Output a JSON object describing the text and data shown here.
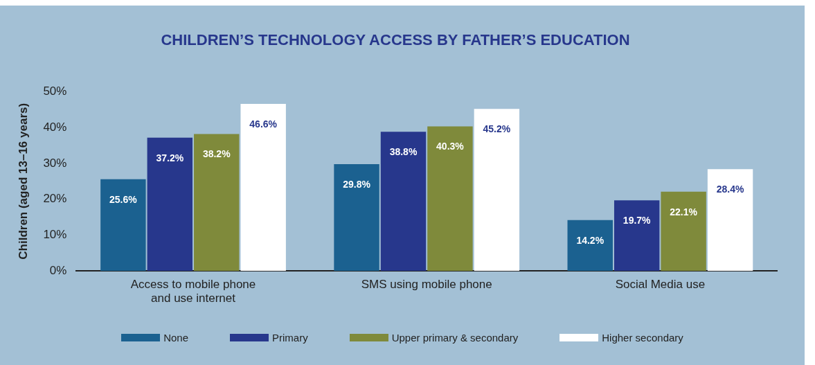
{
  "chart_data": {
    "type": "bar",
    "title": "CHILDREN’S TECHNOLOGY ACCESS BY FATHER’S EDUCATION",
    "ylabel": "Children (aged 13–16 years)",
    "categories": [
      "Access to mobile phone and use internet",
      "SMS using mobile phone",
      "Social Media use"
    ],
    "series": [
      {
        "name": "None",
        "color": "#1b6190",
        "values": [
          25.6,
          29.8,
          14.2
        ],
        "value_labels": [
          "25.6%",
          "29.8%",
          "14.2%"
        ]
      },
      {
        "name": "Primary",
        "color": "#27378c",
        "values": [
          37.2,
          38.8,
          19.7
        ],
        "value_labels": [
          "37.2%",
          "38.8%",
          "19.7%"
        ]
      },
      {
        "name": "Upper primary & secondary",
        "color": "#7f8a3b",
        "values": [
          38.2,
          40.3,
          22.1
        ],
        "value_labels": [
          "38.2%",
          "40.3%",
          "22.1%"
        ]
      },
      {
        "name": "Higher secondary",
        "color": "#ffffff",
        "values": [
          46.6,
          45.2,
          28.4
        ],
        "value_labels": [
          "46.6%",
          "45.2%",
          "28.4%"
        ]
      }
    ],
    "ylim": [
      0,
      50
    ],
    "yticks": [
      {
        "value": 0,
        "label": "0%"
      },
      {
        "value": 10,
        "label": "10%"
      },
      {
        "value": 20,
        "label": "20%"
      },
      {
        "value": 30,
        "label": "30%"
      },
      {
        "value": 40,
        "label": "40%"
      },
      {
        "value": 50,
        "label": "50%"
      }
    ],
    "grid": false,
    "legend": "bottom"
  }
}
